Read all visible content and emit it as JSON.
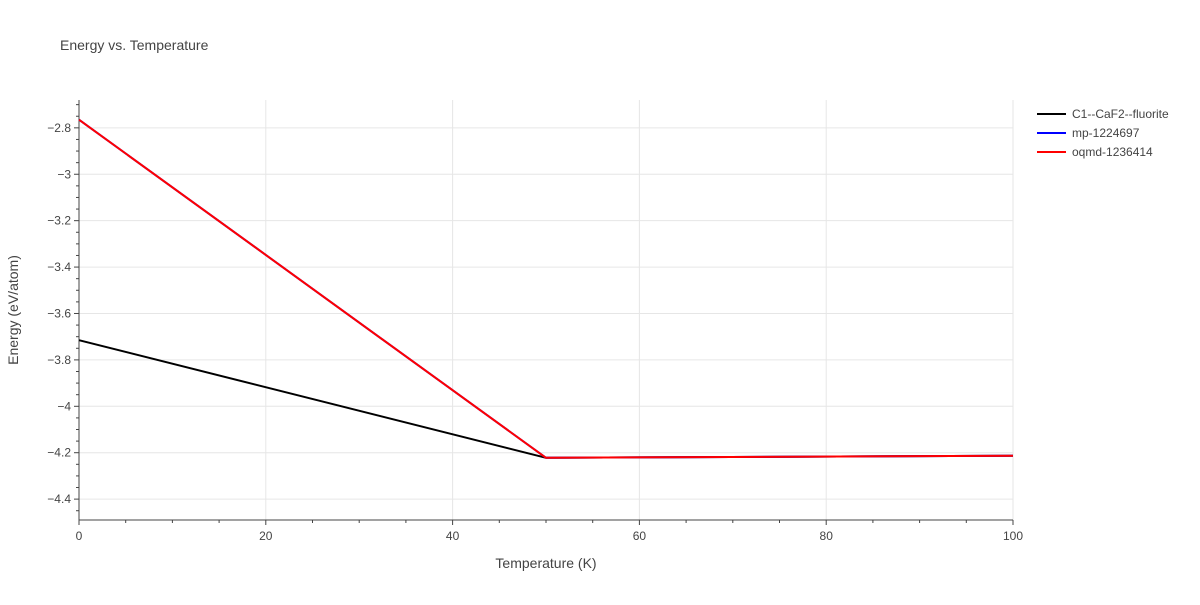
{
  "chart_data": {
    "type": "line",
    "title": "Energy vs. Temperature",
    "xlabel": "Temperature (K)",
    "ylabel": "Energy (eV/atom)",
    "xlim": [
      0,
      100
    ],
    "ylim": [
      -4.49,
      -2.68
    ],
    "x_ticks": [
      0,
      20,
      40,
      60,
      80,
      100
    ],
    "x_tick_labels": [
      "0",
      "20",
      "40",
      "60",
      "80",
      "100"
    ],
    "y_ticks": [
      -2.8,
      -3.0,
      -3.2,
      -3.4,
      -3.6,
      -3.8,
      -4.0,
      -4.2,
      -4.4
    ],
    "y_tick_labels": [
      "−2.8",
      "−3",
      "−3.2",
      "−3.4",
      "−3.6",
      "−3.8",
      "−4",
      "−4.2",
      "−4.4"
    ],
    "grid": true,
    "legend_position": "top-right",
    "series": [
      {
        "name": "C1--CaF2--fluorite",
        "color": "#000000",
        "x": [
          0,
          50,
          100
        ],
        "y": [
          -3.715,
          -4.222,
          -4.213
        ]
      },
      {
        "name": "mp-1224697",
        "color": "#0000ff",
        "x": [
          0,
          50,
          100
        ],
        "y": [
          -2.765,
          -4.222,
          -4.213
        ]
      },
      {
        "name": "oqmd-1236414",
        "color": "#ff0000",
        "x": [
          0,
          50,
          100
        ],
        "y": [
          -2.765,
          -4.222,
          -4.213
        ]
      }
    ]
  }
}
